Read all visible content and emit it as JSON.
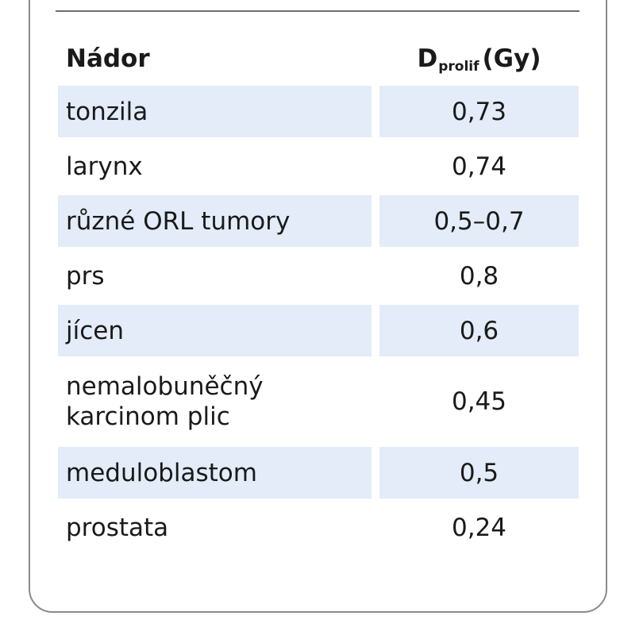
{
  "table": {
    "header": {
      "col1": "Nádor",
      "col2_main": "D",
      "col2_sub": "prolif",
      "col2_unit": "(Gy)"
    },
    "rows": [
      {
        "name": "tonzila",
        "value": "0,73"
      },
      {
        "name": "larynx",
        "value": "0,74"
      },
      {
        "name": "různé ORL tumory",
        "value": "0,5–0,7"
      },
      {
        "name": "prs",
        "value": "0,8"
      },
      {
        "name": "jícen",
        "value": "0,6"
      },
      {
        "name": "nemalobuněčný karcinom plic",
        "value": "0,45"
      },
      {
        "name": "meduloblastom",
        "value": "0,5"
      },
      {
        "name": "prostata",
        "value": "0,24"
      }
    ]
  },
  "colors": {
    "row_shade": "#e3ecf8",
    "border": "#8a8a8a",
    "text": "#1a1a1a"
  }
}
